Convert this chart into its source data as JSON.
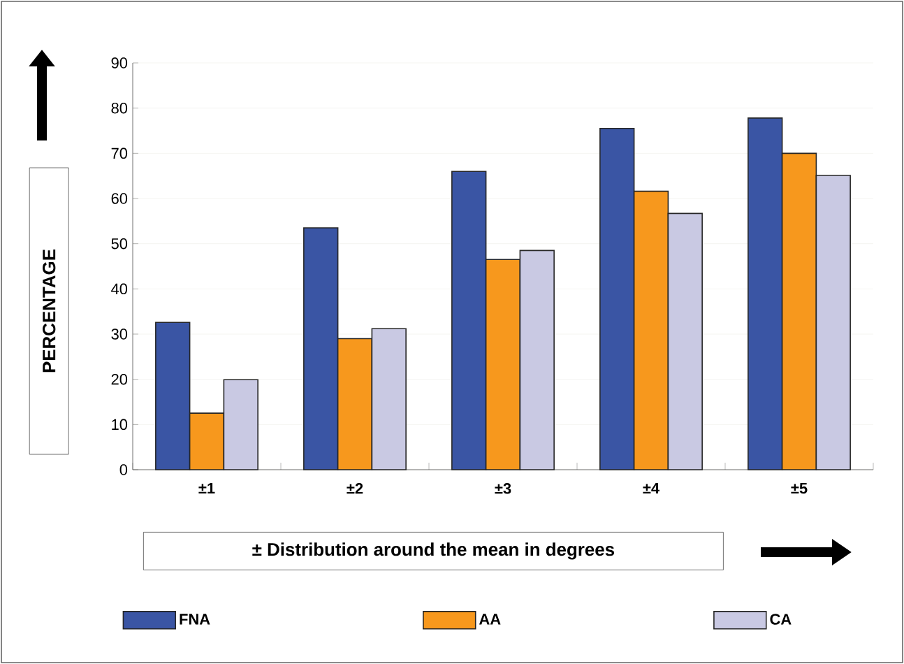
{
  "chart_data": {
    "type": "bar",
    "xlabel": "± Distribution around the mean in degrees",
    "ylabel": "PERCENTAGE",
    "categories": [
      "±1",
      "±2",
      "±3",
      "±4",
      "±5"
    ],
    "series": [
      {
        "name": "FNA",
        "color": "#3a55a4",
        "values": [
          32.6,
          53.5,
          66.0,
          75.5,
          77.8
        ]
      },
      {
        "name": "AA",
        "color": "#f7981d",
        "values": [
          12.5,
          29.0,
          46.5,
          61.6,
          70.0
        ]
      },
      {
        "name": "CA",
        "color": "#c9c9e3",
        "values": [
          19.9,
          31.2,
          48.5,
          56.7,
          65.1
        ]
      }
    ],
    "ylim": [
      0,
      90
    ],
    "yticks": [
      0,
      10,
      20,
      30,
      40,
      50,
      60,
      70,
      80,
      90
    ],
    "grid": "y",
    "legend": "bottom"
  }
}
